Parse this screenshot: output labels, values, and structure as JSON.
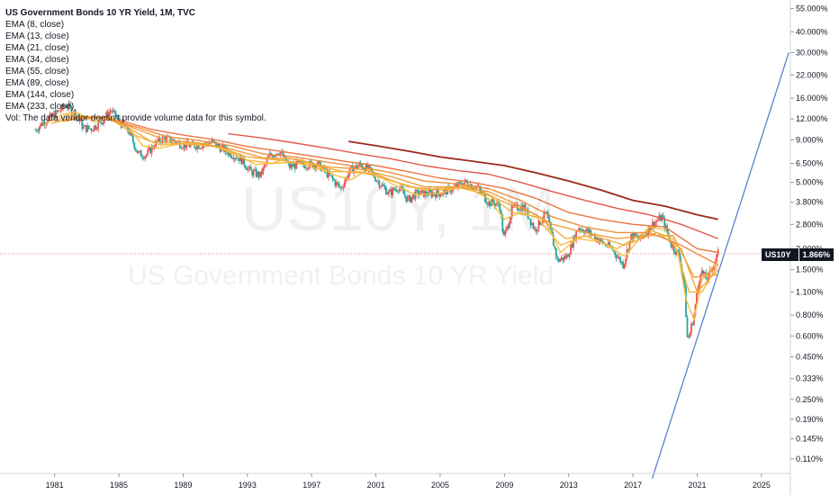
{
  "header": {
    "title": "US Government Bonds 10 YR Yield, 1M, TVC",
    "indicators": [
      "EMA (8, close)",
      "EMA (13, close)",
      "EMA (21, close)",
      "EMA (34, close)",
      "EMA (55, close)",
      "EMA (89, close)",
      "EMA (144, close)",
      "EMA (233, close)"
    ],
    "volume_note": "Vol: The data vendor doesn't provide volume data for this symbol."
  },
  "watermark": {
    "symbol": "US10Y, 1M",
    "name": "US Government Bonds 10 YR Yield"
  },
  "price_label": {
    "symbol": "US10Y",
    "value": "1.866%"
  },
  "colors": {
    "ema_short": "#f5c242",
    "ema_mid": "#f2a33a",
    "ema_long": "#e2574c",
    "ema_233": "#9b2a1a",
    "candle_up": "#26a69a",
    "candle_down": "#ef5350",
    "trendline": "#5b7fd1",
    "price_line": "#ef5350"
  },
  "chart_data": {
    "type": "line",
    "scale": "log",
    "x_ticks": [
      "1981",
      "1985",
      "1989",
      "1993",
      "1997",
      "2001",
      "2005",
      "2009",
      "2013",
      "2017",
      "2021",
      "2025"
    ],
    "y_ticks": [
      "55.000%",
      "40.000%",
      "30.000%",
      "22.000%",
      "16.000%",
      "12.000%",
      "9.000%",
      "6.500%",
      "5.000%",
      "3.800%",
      "2.800%",
      "2.000%",
      "1.500%",
      "1.100%",
      "0.800%",
      "0.600%",
      "0.450%",
      "0.333%",
      "0.250%",
      "0.190%",
      "0.145%",
      "0.110%"
    ],
    "ylim": [
      0.09,
      62
    ],
    "xlim": [
      1977.6,
      2026.8
    ],
    "last_value": 1.866,
    "yield_series": {
      "name": "US10Y",
      "x": [
        1979.8,
        1980.3,
        1980.8,
        1981.2,
        1981.7,
        1982.2,
        1982.8,
        1983.3,
        1984.0,
        1984.5,
        1985.0,
        1985.6,
        1986.2,
        1986.7,
        1987.3,
        1987.8,
        1988.4,
        1989.0,
        1989.6,
        1990.2,
        1990.8,
        1991.4,
        1992.0,
        1992.6,
        1993.2,
        1993.8,
        1994.4,
        1995.0,
        1995.6,
        1996.2,
        1996.8,
        1997.4,
        1998.0,
        1998.8,
        1999.4,
        2000.0,
        2000.6,
        2001.2,
        2001.8,
        2002.4,
        2003.0,
        2003.5,
        2004.2,
        2005.0,
        2005.8,
        2006.5,
        2007.3,
        2008.0,
        2008.7,
        2008.95,
        2009.5,
        2010.2,
        2010.9,
        2011.6,
        2012.3,
        2012.9,
        2013.6,
        2014.3,
        2015.0,
        2015.7,
        2016.4,
        2016.9,
        2017.5,
        2018.2,
        2018.8,
        2019.4,
        2019.9,
        2020.2,
        2020.4,
        2020.8,
        2021.2,
        2021.6,
        2022.0,
        2022.3
      ],
      "values": [
        10.3,
        11.5,
        12.4,
        13.2,
        14.6,
        13.3,
        10.6,
        10.5,
        11.8,
        13.6,
        11.6,
        10.2,
        7.4,
        7.3,
        8.6,
        9.2,
        8.9,
        8.4,
        8.3,
        8.4,
        8.7,
        8.0,
        7.4,
        6.9,
        5.8,
        5.5,
        7.3,
        7.7,
        6.2,
        6.4,
        6.4,
        6.4,
        5.6,
        4.6,
        5.9,
        6.4,
        5.9,
        5.0,
        4.3,
        4.7,
        3.9,
        4.3,
        4.3,
        4.3,
        4.6,
        5.0,
        4.7,
        3.8,
        3.7,
        2.3,
        3.5,
        3.6,
        2.6,
        3.3,
        1.7,
        1.8,
        2.7,
        2.5,
        2.2,
        2.0,
        1.6,
        2.4,
        2.3,
        2.8,
        3.1,
        2.1,
        1.8,
        1.2,
        0.55,
        0.8,
        1.5,
        1.3,
        1.6,
        1.87
      ]
    },
    "ema_series": [
      {
        "name": "EMA (8, close)",
        "color": "#f5c242",
        "x": [
          1980.3,
          1981.5,
          1982.3,
          1983.5,
          1984.5,
          1985.5,
          1986.5,
          1987.5,
          1989.0,
          1990.5,
          1992.0,
          1993.5,
          1994.5,
          1995.5,
          1997.0,
          1998.5,
          1999.5,
          2000.5,
          2002.0,
          2003.5,
          2005.0,
          2006.5,
          2008.0,
          2009.0,
          2010.0,
          2011.5,
          2012.5,
          2013.5,
          2015.0,
          2016.5,
          2018.0,
          2019.0,
          2019.8,
          2020.3,
          2020.8,
          2021.3,
          2022.3
        ],
        "values": [
          11.0,
          12.8,
          13.2,
          11.5,
          12.3,
          11.0,
          8.3,
          8.0,
          8.6,
          8.5,
          7.6,
          6.4,
          6.5,
          7.0,
          6.5,
          5.5,
          5.2,
          6.0,
          4.9,
          4.2,
          4.3,
          4.8,
          4.0,
          3.0,
          3.3,
          3.0,
          1.9,
          2.3,
          2.2,
          1.8,
          2.7,
          2.6,
          1.9,
          1.0,
          0.75,
          1.3,
          1.7
        ]
      },
      {
        "name": "EMA (13, close)",
        "color": "#f5b83f",
        "x": [
          1980.8,
          1981.8,
          1983.0,
          1984.5,
          1986.0,
          1987.5,
          1989.0,
          1991.0,
          1993.0,
          1994.5,
          1996.0,
          1998.0,
          2000.0,
          2002.0,
          2004.0,
          2006.0,
          2008.0,
          2009.5,
          2011.0,
          2012.5,
          2014.0,
          2016.0,
          2018.0,
          2019.5,
          2020.5,
          2021.3,
          2022.3
        ],
        "values": [
          11.2,
          12.7,
          12.2,
          12.0,
          9.6,
          8.4,
          8.5,
          8.2,
          6.8,
          6.5,
          6.6,
          5.8,
          5.8,
          5.1,
          4.5,
          4.7,
          4.2,
          3.3,
          3.1,
          2.1,
          2.4,
          2.0,
          2.6,
          2.3,
          1.1,
          1.1,
          1.6
        ]
      },
      {
        "name": "EMA (21, close)",
        "color": "#f3ab3c",
        "x": [
          1981.0,
          1982.5,
          1984.0,
          1985.5,
          1987.0,
          1989.0,
          1991.0,
          1993.0,
          1995.0,
          1997.0,
          1999.0,
          2001.0,
          2003.0,
          2005.0,
          2007.0,
          2009.0,
          2011.0,
          2012.8,
          2014.5,
          2016.5,
          2018.5,
          2020.0,
          2021.0,
          2022.3
        ],
        "values": [
          11.4,
          12.5,
          12.3,
          10.8,
          8.8,
          8.5,
          8.3,
          7.1,
          6.8,
          6.4,
          5.8,
          5.6,
          4.7,
          4.5,
          4.7,
          3.8,
          3.2,
          2.3,
          2.4,
          2.1,
          2.5,
          2.0,
          1.1,
          1.5
        ]
      },
      {
        "name": "EMA (34, close)",
        "color": "#f29e3a",
        "x": [
          1981.5,
          1983.0,
          1984.5,
          1986.0,
          1988.0,
          1990.0,
          1992.0,
          1994.0,
          1996.0,
          1998.0,
          2000.0,
          2002.0,
          2004.0,
          2006.0,
          2008.0,
          2010.0,
          2012.0,
          2014.0,
          2016.0,
          2018.0,
          2019.5,
          2020.8,
          2022.3
        ],
        "values": [
          11.6,
          12.3,
          12.2,
          10.5,
          8.9,
          8.6,
          7.9,
          7.0,
          6.9,
          6.2,
          6.0,
          5.4,
          4.7,
          4.7,
          4.4,
          3.6,
          2.8,
          2.5,
          2.3,
          2.4,
          2.4,
          1.35,
          1.4
        ]
      },
      {
        "name": "EMA (55, close)",
        "color": "#ee8d3c",
        "x": [
          1982.0,
          1984.0,
          1986.0,
          1988.0,
          1990.0,
          1992.0,
          1994.0,
          1996.0,
          1998.0,
          2000.0,
          2002.0,
          2004.0,
          2006.0,
          2008.0,
          2010.0,
          2012.0,
          2014.0,
          2016.0,
          2018.0,
          2020.0,
          2022.3
        ],
        "values": [
          12.0,
          12.2,
          10.8,
          9.4,
          8.9,
          8.3,
          7.4,
          7.1,
          6.6,
          6.2,
          5.7,
          5.1,
          4.9,
          4.6,
          3.9,
          3.1,
          2.7,
          2.5,
          2.5,
          2.1,
          1.6
        ]
      },
      {
        "name": "EMA (89, close)",
        "color": "#e97442",
        "x": [
          1985.0,
          1987.0,
          1989.0,
          1991.0,
          1993.0,
          1995.0,
          1997.0,
          1999.0,
          2001.0,
          2003.0,
          2005.0,
          2007.0,
          2009.0,
          2011.0,
          2013.0,
          2015.0,
          2017.0,
          2019.0,
          2021.0,
          2022.3
        ],
        "values": [
          11.8,
          10.4,
          9.6,
          9.0,
          8.2,
          7.7,
          7.2,
          6.7,
          6.3,
          5.8,
          5.3,
          5.0,
          4.6,
          4.0,
          3.3,
          3.0,
          2.8,
          2.7,
          2.0,
          1.9
        ]
      },
      {
        "name": "EMA (144, close)",
        "color": "#e2574c",
        "x": [
          1991.8,
          1994.0,
          1996.0,
          1998.0,
          2000.0,
          2002.0,
          2004.0,
          2006.0,
          2008.0,
          2010.0,
          2012.0,
          2014.0,
          2016.0,
          2018.0,
          2020.0,
          2022.3
        ],
        "values": [
          9.8,
          9.2,
          8.6,
          8.0,
          7.4,
          6.9,
          6.3,
          5.9,
          5.6,
          5.0,
          4.4,
          3.9,
          3.5,
          3.2,
          2.8,
          2.3
        ]
      },
      {
        "name": "EMA (233, close)",
        "color": "#9b2a1a",
        "x": [
          1999.3,
          2001.0,
          2003.0,
          2005.0,
          2007.0,
          2009.0,
          2011.0,
          2013.0,
          2015.0,
          2017.0,
          2019.0,
          2021.0,
          2022.3
        ],
        "values": [
          8.8,
          8.3,
          7.7,
          7.1,
          6.7,
          6.3,
          5.7,
          5.1,
          4.5,
          3.9,
          3.6,
          3.2,
          3.0
        ]
      }
    ],
    "trendline": {
      "x": [
        2018.2,
        2026.7
      ],
      "values": [
        0.084,
        30.0
      ]
    }
  }
}
